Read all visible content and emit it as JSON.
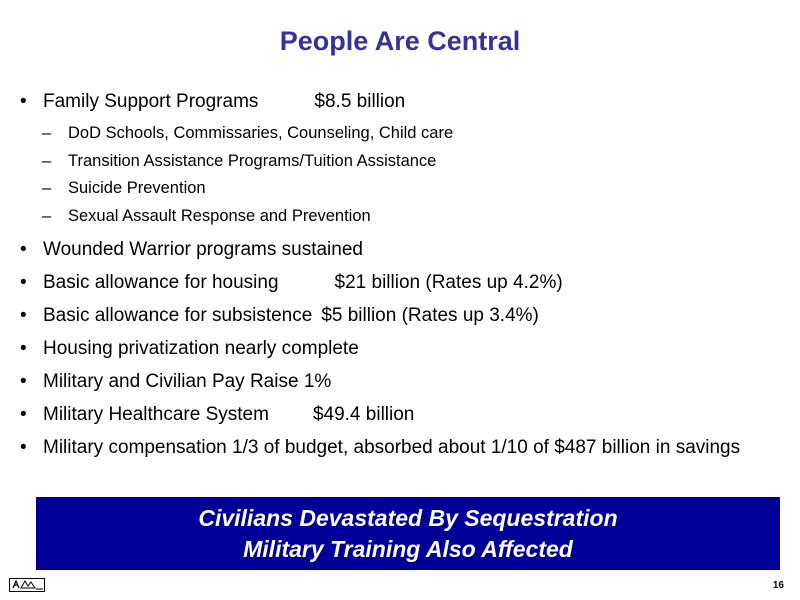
{
  "slide": {
    "title": "People Are Central",
    "page_number": "16"
  },
  "bullets": [
    {
      "text": "Family Support Programs",
      "amount": "$8.5 billion",
      "sub_items": [
        "DoD Schools, Commissaries, Counseling, Child care",
        "Transition Assistance Programs/Tuition Assistance",
        "Suicide Prevention",
        "Sexual Assault Response and Prevention"
      ]
    },
    {
      "text": "Wounded Warrior programs sustained"
    },
    {
      "text": "Basic allowance for housing",
      "amount": "$21 billion (Rates up 4.2%)"
    },
    {
      "text": "Basic allowance for subsistence",
      "amount": "$5 billion (Rates up 3.4%)"
    },
    {
      "text": "Housing privatization nearly complete"
    },
    {
      "text": "Military and Civilian Pay Raise 1%"
    },
    {
      "text": "Military Healthcare System",
      "amount": "$49.4 billion"
    },
    {
      "text": "Military compensation 1/3 of budget, absorbed about 1/10 of $487 billion in savings"
    }
  ],
  "banner": {
    "line1": "Civilians Devastated By Sequestration",
    "line2": "Military Training Also Affected"
  },
  "colors": {
    "title": "#333399",
    "banner_background": "#000099",
    "banner_text": "#ffffff"
  },
  "icons": {
    "footer": "footer-logo-icon"
  }
}
